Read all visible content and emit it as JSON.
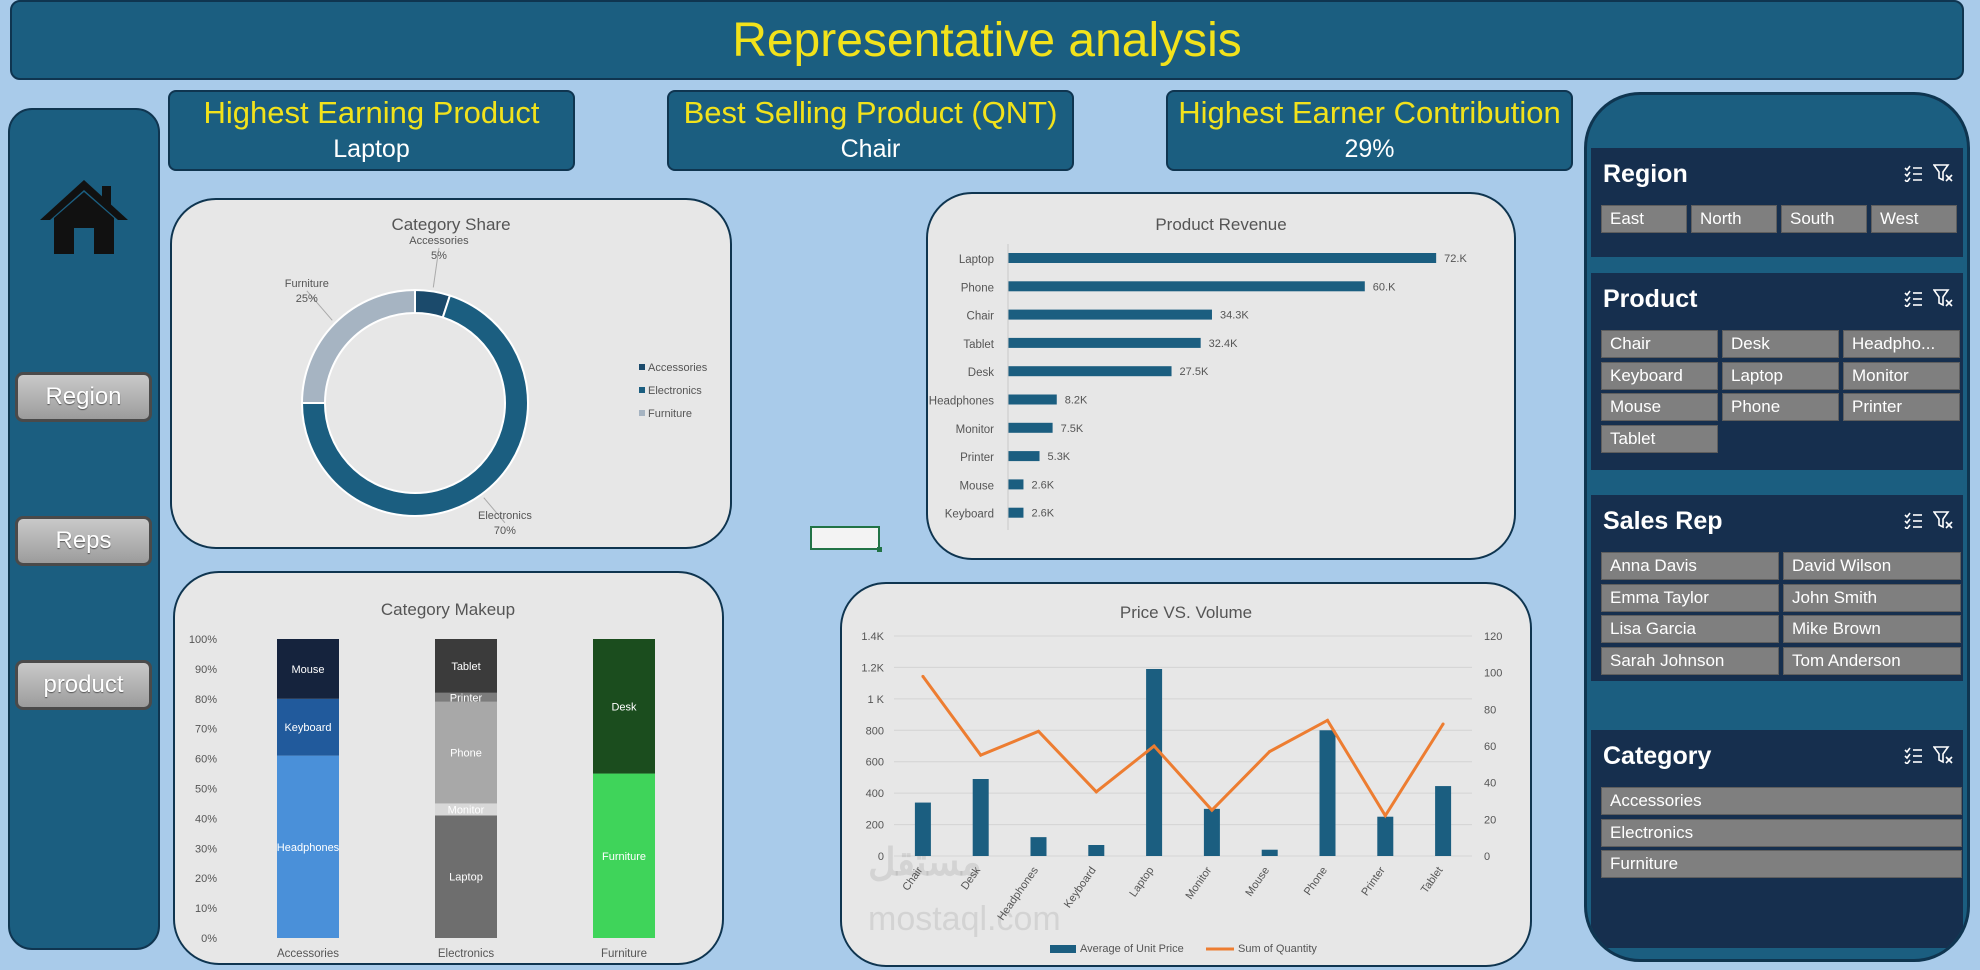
{
  "header": {
    "title": "Representative analysis"
  },
  "nav": {
    "home_icon": "home-icon",
    "buttons": [
      {
        "label": "Region"
      },
      {
        "label": "Reps"
      },
      {
        "label": "product"
      }
    ]
  },
  "kpis": [
    {
      "title": "Highest Earning Product",
      "value": "Laptop"
    },
    {
      "title": "Best Selling Product (QNT)",
      "value": "Chair"
    },
    {
      "title": "Highest Earner Contribution",
      "value": "29%"
    }
  ],
  "colors": {
    "brand": "#1b5e80",
    "dark": "#0f3550",
    "accent_yellow": "#f2e21b",
    "panel_dark": "#162f4e",
    "line_orange": "#ed7d31",
    "background": "#a9cbea"
  },
  "slicers": {
    "region": {
      "title": "Region",
      "items": [
        "East",
        "North",
        "South",
        "West"
      ]
    },
    "product": {
      "title": "Product",
      "items": [
        "Chair",
        "Desk",
        "Headpho...",
        "Keyboard",
        "Laptop",
        "Monitor",
        "Mouse",
        "Phone",
        "Printer",
        "Tablet"
      ]
    },
    "sales_rep": {
      "title": "Sales Rep",
      "items": [
        "Anna Davis",
        "David Wilson",
        "Emma Taylor",
        "John Smith",
        "Lisa Garcia",
        "Mike Brown",
        "Sarah Johnson",
        "Tom Anderson"
      ]
    },
    "category": {
      "title": "Category",
      "items": [
        "Accessories",
        "Electronics",
        "Furniture"
      ]
    }
  },
  "watermark": {
    "arabic": "مستقل",
    "latin": "mostaql.com"
  },
  "chart_data": [
    {
      "id": "category_share",
      "type": "pie",
      "title": "Category Share",
      "donut": true,
      "slices": [
        {
          "label": "Accessories",
          "value": 5,
          "display": "5%",
          "color": "#1b4a6b"
        },
        {
          "label": "Electronics",
          "value": 70,
          "display": "70%",
          "color": "#1b5e80"
        },
        {
          "label": "Furniture",
          "value": 25,
          "display": "25%",
          "color": "#a6b4c2"
        }
      ],
      "legend": [
        "Accessories",
        "Electronics",
        "Furniture"
      ],
      "legend_position": "right"
    },
    {
      "id": "product_revenue",
      "type": "bar",
      "orientation": "horizontal",
      "title": "Product Revenue",
      "categories": [
        "Laptop",
        "Phone",
        "Chair",
        "Tablet",
        "Desk",
        "Headphones",
        "Monitor",
        "Printer",
        "Mouse",
        "Keyboard"
      ],
      "values": [
        72000,
        60000,
        34300,
        32400,
        27500,
        8200,
        7500,
        5300,
        2600,
        2600
      ],
      "labels": [
        "72.K",
        "60.K",
        "34.3K",
        "32.4K",
        "27.5K",
        "8.2K",
        "7.5K",
        "5.3K",
        "2.6K",
        "2.6K"
      ],
      "xlim": [
        0,
        75000
      ]
    },
    {
      "id": "category_makeup",
      "type": "bar",
      "stacked": "percent",
      "title": "Category Makeup",
      "categories": [
        "Accessories",
        "Electronics",
        "Furniture"
      ],
      "yticks": [
        "0%",
        "10%",
        "20%",
        "30%",
        "40%",
        "50%",
        "60%",
        "70%",
        "80%",
        "90%",
        "100%"
      ],
      "stacks": [
        [
          {
            "name": "Headphones",
            "value": 61,
            "color": "#4a90d9"
          },
          {
            "name": "Keyboard",
            "value": 19,
            "color": "#215a9c"
          },
          {
            "name": "Mouse",
            "value": 20,
            "color": "#15233d"
          }
        ],
        [
          {
            "name": "Laptop",
            "value": 41,
            "color": "#6e6e6e"
          },
          {
            "name": "Monitor",
            "value": 4,
            "color": "#d8d8d8"
          },
          {
            "name": "Phone",
            "value": 34,
            "color": "#a8a8a8"
          },
          {
            "name": "Printer",
            "value": 3,
            "color": "#7c7c7c"
          },
          {
            "name": "Tablet",
            "value": 18,
            "color": "#3b3b3b"
          }
        ],
        [
          {
            "name": "Furniture",
            "value": 55,
            "color": "#3fd45a"
          },
          {
            "name": "Desk",
            "value": 45,
            "color": "#1b4d1e"
          }
        ]
      ]
    },
    {
      "id": "price_vs_volume",
      "type": "bar",
      "combo": "bar-line",
      "title": "Price VS. Volume",
      "categories": [
        "Chair",
        "Desk",
        "Headphones",
        "Keyboard",
        "Laptop",
        "Monitor",
        "Mouse",
        "Phone",
        "Printer",
        "Tablet"
      ],
      "series": [
        {
          "name": "Average of Unit Price",
          "type": "bar",
          "axis": "left",
          "color": "#1b5e80",
          "values": [
            340,
            490,
            120,
            70,
            1190,
            300,
            40,
            800,
            250,
            445
          ]
        },
        {
          "name": "Sum of Quantity",
          "type": "line",
          "axis": "right",
          "color": "#ed7d31",
          "values": [
            98,
            55,
            68,
            35,
            60,
            25,
            57,
            74,
            22,
            72
          ]
        }
      ],
      "yticks_left": [
        "0",
        "200",
        "400",
        "600",
        "800",
        "1 K",
        "1.2K",
        "1.4K"
      ],
      "ylim_left": [
        0,
        1400
      ],
      "yticks_right": [
        "0",
        "20",
        "40",
        "60",
        "80",
        "100",
        "120"
      ],
      "ylim_right": [
        0,
        120
      ],
      "legend_position": "bottom"
    }
  ]
}
